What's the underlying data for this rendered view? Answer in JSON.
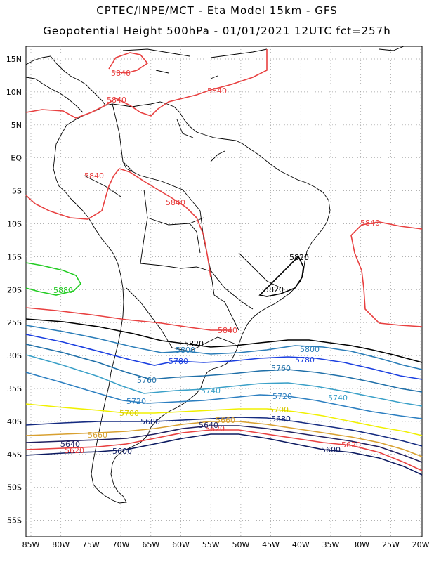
{
  "title_line1": "CPTEC/INPE/MCT -  Eta Model 15km - GFS",
  "title_line2": "Geopotential Height 500hPa - 01/01/2021 12UTC fct=257h",
  "lat_ticks": [
    "15N",
    "10N",
    "5N",
    "EQ",
    "5S",
    "10S",
    "15S",
    "20S",
    "25S",
    "30S",
    "35S",
    "40S",
    "45S",
    "50S",
    "55S"
  ],
  "lon_ticks": [
    "85W",
    "80W",
    "75W",
    "70W",
    "65W",
    "60W",
    "55W",
    "50W",
    "45W",
    "40W",
    "35W",
    "30W",
    "25W",
    "20W"
  ],
  "contour_labels": {
    "c5880": "5880",
    "c5840": "5840",
    "c5820": "5820",
    "c5800": "5800",
    "c5780": "5780",
    "c5760": "5760",
    "c5740": "5740",
    "c5720": "5720",
    "c5700": "5700",
    "c5680": "5680",
    "c5660": "5660",
    "c5640": "5640",
    "c5620": "5620",
    "c5600": "5600"
  },
  "colors": {
    "c5880": "#22cc22",
    "c5840": "#e84040",
    "c5820": "#000000",
    "c5800": "#2a7db8",
    "c5780": "#1a3ee0",
    "c5760": "#1f6fa8",
    "c5740": "#3aa0c8",
    "c5720": "#2b7ec0",
    "c5700": "#f0f000",
    "c5680": "#142a80",
    "c5660": "#d8a030",
    "c5640": "#202060",
    "c5620": "#e84040",
    "c5600": "#0c1a60",
    "coast": "#000000",
    "grid": "#999999"
  }
}
